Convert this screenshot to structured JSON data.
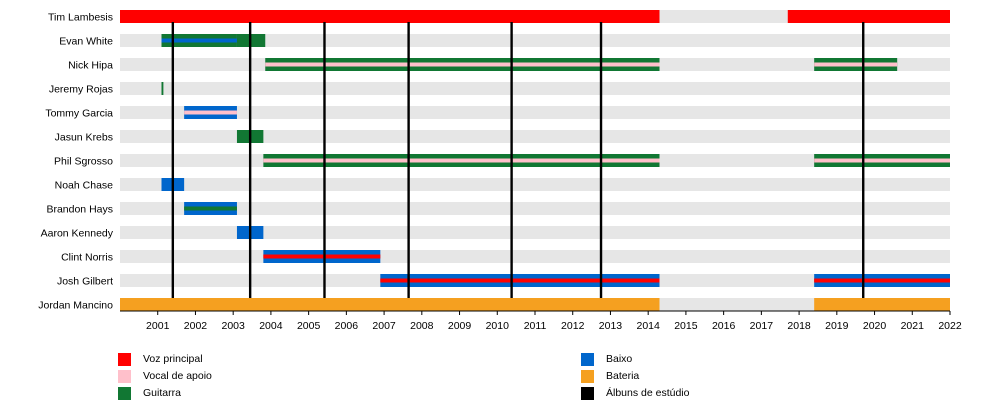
{
  "chart_data": {
    "type": "timeline",
    "x_range": [
      2000.0,
      2022.0
    ],
    "year_ticks": [
      "2001",
      "2002",
      "2003",
      "2004",
      "2005",
      "2006",
      "2007",
      "2008",
      "2009",
      "2010",
      "2011",
      "2012",
      "2013",
      "2014",
      "2015",
      "2016",
      "2017",
      "2018",
      "2019",
      "2020",
      "2021",
      "2022"
    ],
    "colors": {
      "lead_vocals": "#ff0000",
      "backing_vocals": "#ffc0cb",
      "guitar": "#117733",
      "bass": "#0066cc",
      "drums": "#f5a020",
      "studio_album": "#000000",
      "row_background": "#e6e6e6"
    },
    "members": [
      {
        "name": "Tim Lambesis",
        "periods": [
          {
            "start": 2000.0,
            "end": 2014.3,
            "roles": [
              "lead_vocals"
            ]
          },
          {
            "start": 2017.7,
            "end": 2022.0,
            "roles": [
              "lead_vocals"
            ]
          }
        ]
      },
      {
        "name": "Evan White",
        "periods": [
          {
            "start": 2001.1,
            "end": 2003.1,
            "roles": [
              "guitar",
              "bass"
            ]
          },
          {
            "start": 2003.1,
            "end": 2003.85,
            "roles": [
              "guitar"
            ]
          }
        ]
      },
      {
        "name": "Nick Hipa",
        "periods": [
          {
            "start": 2003.85,
            "end": 2014.3,
            "roles": [
              "guitar",
              "backing_vocals"
            ]
          },
          {
            "start": 2018.4,
            "end": 2020.6,
            "roles": [
              "guitar",
              "backing_vocals"
            ]
          }
        ]
      },
      {
        "name": "Jeremy Rojas",
        "periods": [
          {
            "start": 2001.1,
            "end": 2001.15,
            "roles": [
              "guitar"
            ]
          }
        ]
      },
      {
        "name": "Tommy Garcia",
        "periods": [
          {
            "start": 2001.7,
            "end": 2003.1,
            "roles": [
              "bass",
              "backing_vocals"
            ]
          }
        ]
      },
      {
        "name": "Jasun Krebs",
        "periods": [
          {
            "start": 2003.1,
            "end": 2003.8,
            "roles": [
              "guitar"
            ]
          }
        ]
      },
      {
        "name": "Phil Sgrosso",
        "periods": [
          {
            "start": 2003.8,
            "end": 2014.3,
            "roles": [
              "guitar",
              "backing_vocals"
            ]
          },
          {
            "start": 2018.4,
            "end": 2022.0,
            "roles": [
              "guitar",
              "backing_vocals"
            ]
          }
        ]
      },
      {
        "name": "Noah Chase",
        "periods": [
          {
            "start": 2001.1,
            "end": 2001.7,
            "roles": [
              "bass"
            ]
          }
        ]
      },
      {
        "name": "Brandon Hays",
        "periods": [
          {
            "start": 2001.7,
            "end": 2003.1,
            "roles": [
              "bass",
              "guitar"
            ]
          }
        ]
      },
      {
        "name": "Aaron Kennedy",
        "periods": [
          {
            "start": 2003.1,
            "end": 2003.8,
            "roles": [
              "bass"
            ]
          }
        ]
      },
      {
        "name": "Clint Norris",
        "periods": [
          {
            "start": 2003.8,
            "end": 2006.9,
            "roles": [
              "bass",
              "lead_vocals"
            ]
          }
        ]
      },
      {
        "name": "Josh Gilbert",
        "periods": [
          {
            "start": 2006.9,
            "end": 2014.3,
            "roles": [
              "bass",
              "lead_vocals"
            ]
          },
          {
            "start": 2018.4,
            "end": 2022.0,
            "roles": [
              "bass",
              "lead_vocals"
            ]
          }
        ]
      },
      {
        "name": "Jordan Mancino",
        "periods": [
          {
            "start": 2000.0,
            "end": 2014.3,
            "roles": [
              "drums"
            ]
          },
          {
            "start": 2018.4,
            "end": 2022.0,
            "roles": [
              "drums"
            ]
          }
        ]
      }
    ],
    "studio_albums": [
      2001.4,
      2003.45,
      2005.42,
      2007.65,
      2010.38,
      2012.75,
      2019.7
    ]
  },
  "legend": [
    {
      "label": "Voz principal",
      "color": "#ff0000"
    },
    {
      "label": "Vocal de apoio",
      "color": "#ffc0cb"
    },
    {
      "label": "Guitarra",
      "color": "#117733"
    },
    {
      "label": "Baixo",
      "color": "#0066cc"
    },
    {
      "label": "Bateria",
      "color": "#f5a020"
    },
    {
      "label": "Álbuns de estúdio",
      "color": "#000000"
    }
  ]
}
